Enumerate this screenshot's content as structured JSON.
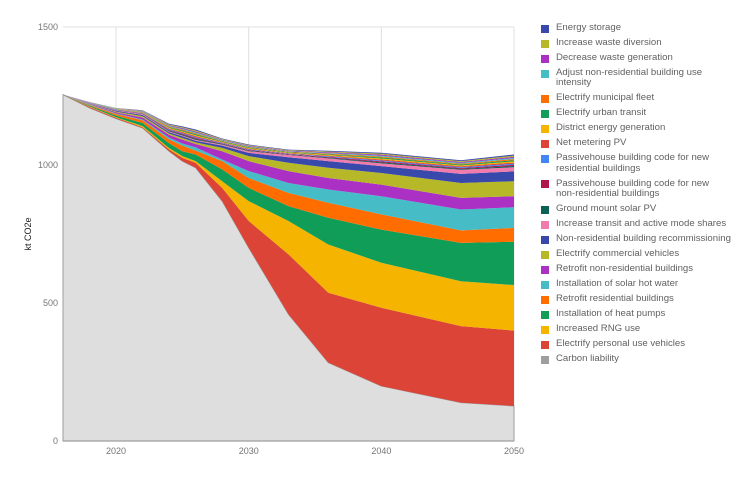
{
  "chart_data": {
    "type": "area",
    "stacked": true,
    "title": "",
    "xlabel": "",
    "ylabel": "kt CO2e",
    "xlim": [
      2016,
      2050
    ],
    "ylim": [
      0,
      1500
    ],
    "x_ticks": [
      "2020",
      "2030",
      "2040",
      "2050"
    ],
    "x_tick_values": [
      2020,
      2030,
      2040,
      2050
    ],
    "y_ticks": [
      "0",
      "500",
      "1000",
      "1500"
    ],
    "y_tick_values": [
      0,
      500,
      1000,
      1500
    ],
    "grid": true,
    "legend_position": "right",
    "x": [
      2016,
      2018,
      2020,
      2022,
      2024,
      2025,
      2026,
      2028,
      2030,
      2033,
      2036,
      2040,
      2046,
      2050
    ],
    "series": [
      {
        "name": "Carbon liability",
        "label_lines": [
          "Carbon liability"
        ],
        "color": "#9e9e9e",
        "fill": "#dedede",
        "values": [
          1255,
          1207,
          1168,
          1134,
          1050,
          1014,
          990,
          869,
          700,
          459,
          284,
          199,
          139,
          127
        ]
      },
      {
        "name": "Electrify personal use vehicles",
        "label_lines": [
          "Electrify personal use vehicles"
        ],
        "color": "#db4437",
        "values": [
          0,
          3,
          3,
          3,
          6,
          12,
          18,
          48,
          97,
          217,
          253,
          284,
          277,
          273
        ]
      },
      {
        "name": "Increased RNG use",
        "label_lines": [
          "Increased RNG use"
        ],
        "color": "#f4b400",
        "values": [
          0,
          2,
          2,
          4,
          5,
          6,
          6,
          24,
          72,
          121,
          175,
          163,
          163,
          165
        ]
      },
      {
        "name": "Installation of heat pumps",
        "label_lines": [
          "Installation of heat pumps"
        ],
        "color": "#0f9d58",
        "values": [
          0,
          3,
          6,
          11,
          18,
          18,
          24,
          43,
          48,
          54,
          97,
          120,
          139,
          157
        ]
      },
      {
        "name": "Retrofit residential buildings",
        "label_lines": [
          "Retrofit residential buildings"
        ],
        "color": "#ff6d00",
        "values": [
          0,
          3,
          6,
          10,
          14,
          20,
          14,
          30,
          36,
          48,
          54,
          55,
          45,
          50
        ]
      },
      {
        "name": "Installation of solar hot water",
        "label_lines": [
          "Installation of solar hot water"
        ],
        "color": "#46bdc6",
        "values": [
          0,
          2,
          2,
          3,
          6,
          8,
          12,
          6,
          25,
          36,
          48,
          66,
          76,
          75
        ]
      },
      {
        "name": "Retrofit non-residential buildings",
        "label_lines": [
          "Retrofit non-residential buildings"
        ],
        "color": "#ab30c4",
        "values": [
          0,
          2,
          4,
          7,
          10,
          14,
          12,
          30,
          36,
          43,
          42,
          42,
          42,
          40
        ]
      },
      {
        "name": "Electrify commercial vehicles",
        "label_lines": [
          "Electrify commercial vehicles"
        ],
        "color": "#b7b827",
        "values": [
          0,
          1,
          3,
          5,
          5,
          6,
          6,
          12,
          18,
          30,
          37,
          42,
          54,
          54
        ]
      },
      {
        "name": "Non-residential building recommissioning",
        "label_lines": [
          "Non-residential building recommissioning"
        ],
        "color": "#3949ab",
        "values": [
          0,
          1,
          3,
          4,
          5,
          6,
          6,
          8,
          12,
          20,
          24,
          25,
          33,
          36
        ]
      },
      {
        "name": "Increase transit and active mode shares",
        "label_lines": [
          "Increase transit and active mode shares"
        ],
        "color": "#f07bac",
        "values": [
          0,
          1,
          2,
          3,
          3,
          3,
          3,
          4,
          6,
          8,
          10,
          10,
          15,
          15
        ]
      },
      {
        "name": "Ground mount solar PV",
        "label_lines": [
          "Ground mount solar PV"
        ],
        "color": "#0b6156",
        "values": [
          0,
          0.3,
          0.7,
          1.3,
          2.5,
          3,
          3.4,
          2,
          2.2,
          1.8,
          2.5,
          3.5,
          3.1,
          4.2
        ]
      },
      {
        "name": "Passivehouse building code for new non-residential buildings",
        "label_lines": [
          "Passivehouse building code for new",
          "non-residential buildings"
        ],
        "color": "#b0154d",
        "values": [
          0,
          0.3,
          0.7,
          1.3,
          2.5,
          3,
          3.4,
          2,
          2.2,
          1.8,
          2.5,
          3.5,
          3.1,
          4.2
        ]
      },
      {
        "name": "Passivehouse building code for new residential buildings",
        "label_lines": [
          "Passivehouse building code for new",
          "residential buildings"
        ],
        "color": "#4285f4",
        "values": [
          0,
          0.3,
          0.7,
          1.3,
          2.5,
          3,
          3.4,
          2,
          2.2,
          1.8,
          2.5,
          3.5,
          3.1,
          4.2
        ]
      },
      {
        "name": "Net metering PV",
        "label_lines": [
          "Net metering PV"
        ],
        "color": "#db4437",
        "values": [
          0,
          0.3,
          0.7,
          1.3,
          2.5,
          3,
          3.4,
          2,
          2.2,
          1.8,
          2.5,
          3.5,
          3.1,
          4.2
        ]
      },
      {
        "name": "District energy generation",
        "label_lines": [
          "District energy generation"
        ],
        "color": "#f4b400",
        "values": [
          0,
          0.3,
          0.7,
          1.3,
          2.5,
          3,
          3.4,
          2,
          2.2,
          1.8,
          2.5,
          3.5,
          3.1,
          4.2
        ]
      },
      {
        "name": "Electrify urban transit",
        "label_lines": [
          "Electrify urban transit"
        ],
        "color": "#0f9d58",
        "values": [
          0,
          0.3,
          0.7,
          1.3,
          2.5,
          3,
          3.4,
          2,
          2.2,
          1.8,
          2.5,
          3.5,
          3.1,
          4.2
        ]
      },
      {
        "name": "Electrify municipal fleet",
        "label_lines": [
          "Electrify municipal fleet"
        ],
        "color": "#ff6d00",
        "values": [
          0,
          0.3,
          0.7,
          1.3,
          2.5,
          3,
          3.4,
          2,
          2.2,
          1.8,
          2.5,
          3.5,
          3.1,
          4.2
        ]
      },
      {
        "name": "Adjust non-residential building use intensity",
        "label_lines": [
          "Adjust non-residential building use",
          "intensity"
        ],
        "color": "#46bdc6",
        "values": [
          0,
          0.3,
          0.7,
          1.3,
          2.5,
          3,
          3.4,
          2,
          2.2,
          1.8,
          2.5,
          3.5,
          3.1,
          4.2
        ]
      },
      {
        "name": "Decrease waste generation",
        "label_lines": [
          "Decrease waste generation"
        ],
        "color": "#ab30c4",
        "values": [
          0,
          0.3,
          0.7,
          1.3,
          2.5,
          3,
          3.4,
          2,
          2.2,
          1.8,
          2.5,
          3.5,
          3.1,
          4.2
        ]
      },
      {
        "name": "Increase waste diversion",
        "label_lines": [
          "Increase waste diversion"
        ],
        "color": "#b7b827",
        "values": [
          0,
          0.3,
          0.7,
          1.3,
          2.5,
          3,
          3.4,
          2,
          2.2,
          1.8,
          2.5,
          3.5,
          3.1,
          4.2
        ]
      },
      {
        "name": "Energy storage",
        "label_lines": [
          "Energy storage"
        ],
        "color": "#3949ab",
        "values": [
          0,
          0.3,
          0.7,
          1.3,
          2.5,
          3,
          3.4,
          2,
          2.2,
          1.8,
          2.5,
          3.5,
          3.1,
          4.2
        ]
      }
    ]
  }
}
